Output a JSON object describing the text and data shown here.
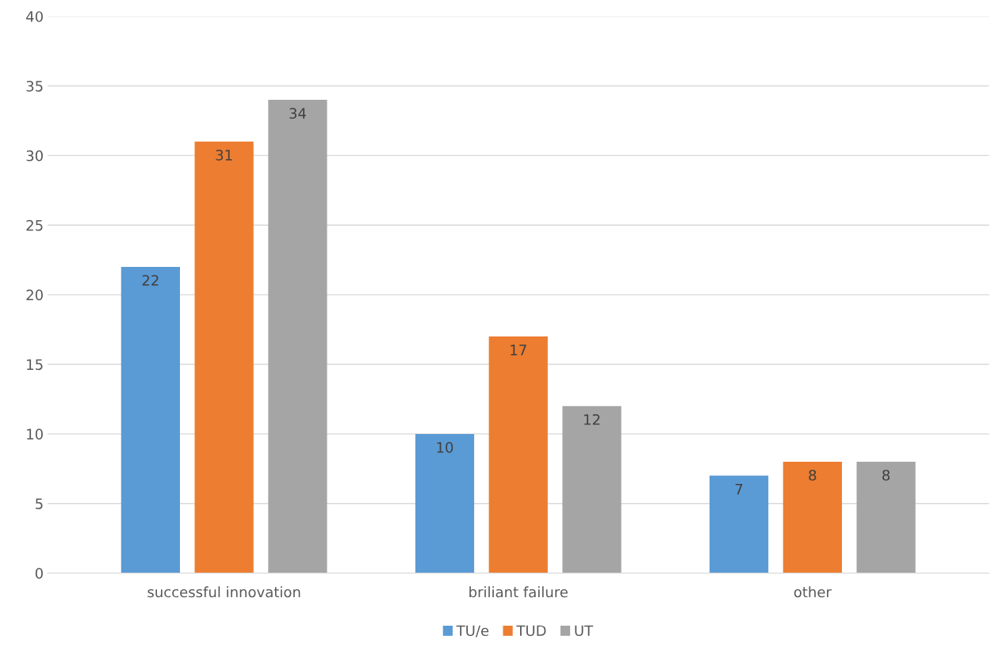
{
  "chart_data": {
    "type": "bar",
    "categories": [
      "successful innovation",
      "briliant failure",
      "other"
    ],
    "series": [
      {
        "name": "TU/e",
        "color": "#5b9bd5",
        "values": [
          22,
          10,
          7
        ]
      },
      {
        "name": "TUD",
        "color": "#ed7d31",
        "values": [
          31,
          17,
          8
        ]
      },
      {
        "name": "UT",
        "color": "#a5a5a5",
        "values": [
          34,
          12,
          8
        ]
      }
    ],
    "ylim": [
      0,
      40
    ],
    "yticks": [
      0,
      5,
      10,
      15,
      20,
      25,
      30,
      35,
      40
    ],
    "grid": "y",
    "legend": "bottom",
    "data_labels": true
  }
}
